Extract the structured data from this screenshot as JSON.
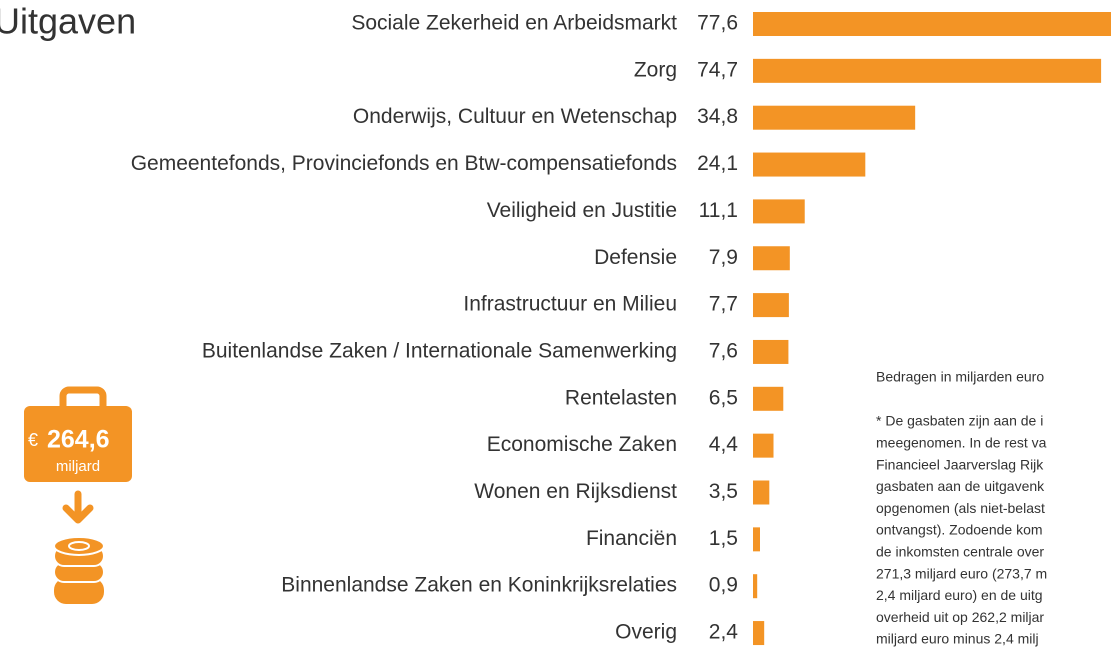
{
  "chart_data": {
    "type": "barh",
    "title": "Uitgaven",
    "categories": [
      "Sociale Zekerheid en Arbeidsmarkt",
      "Zorg",
      "Onderwijs, Cultuur en Wetenschap",
      "Gemeentefonds, Provinciefonds en Btw-compensatiefonds",
      "Veiligheid en Justitie",
      "Defensie",
      "Infrastructuur en Milieu",
      "Buitenlandse Zaken / Internationale Samenwerking",
      "Rentelasten",
      "Economische Zaken",
      "Wonen en Rijksdienst",
      "Financiën",
      "Binnenlandse Zaken en Koninkrijksrelaties",
      "Overig"
    ],
    "values": [
      77.6,
      74.7,
      34.8,
      24.1,
      11.1,
      7.9,
      7.7,
      7.6,
      6.5,
      4.4,
      3.5,
      1.5,
      0.9,
      2.4
    ],
    "value_labels": [
      "77,6",
      "74,7",
      "34,8",
      "24,1",
      "11,1",
      "7,9",
      "7,7",
      "7,6",
      "6,5",
      "4,4",
      "3,5",
      "1,5",
      "0,9",
      "2,4"
    ],
    "color": "#f39425",
    "badge": {
      "currency": "€",
      "amount": "264,6",
      "unit": "miljard"
    },
    "note": "Bedragen in miljarden euro",
    "footnote": [
      "* De gasbaten zijn aan de i",
      "meegenomen. In de rest va",
      "Financieel Jaarverslag Rijk",
      "gasbaten aan de uitgavenk",
      "opgenomen (als niet-belast",
      "ontvangst). Zodoende kom",
      "de inkomsten centrale over",
      "271,3 miljard euro (273,7 m",
      "2,4 miljard euro) en de uitg",
      "overheid uit op 262,2 miljar",
      "miljard euro minus 2,4 milj"
    ]
  }
}
